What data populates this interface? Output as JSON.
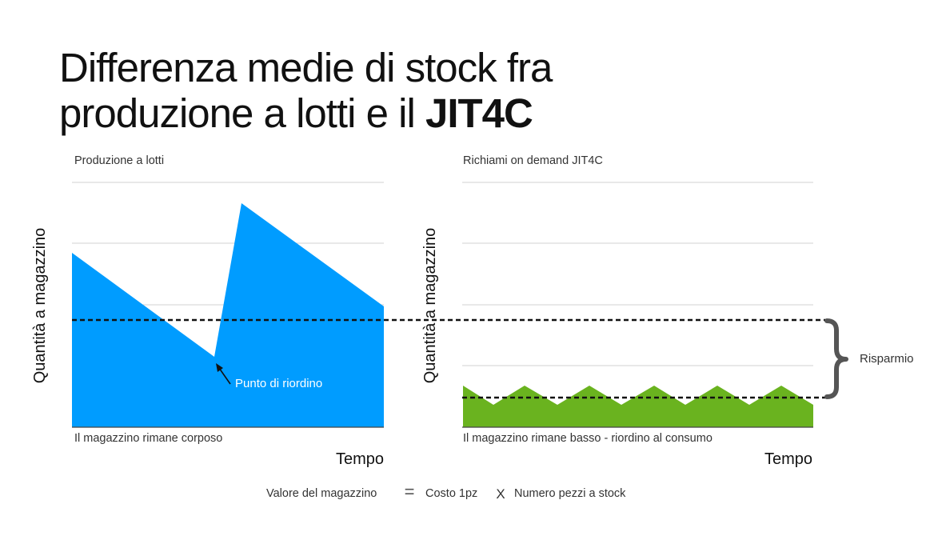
{
  "title": {
    "line1": "Differenza medie di stock fra",
    "line2_prefix": "produzione a lotti e il ",
    "line2_bold": "JIT4C"
  },
  "charts": [
    {
      "subtitle": "Produzione a lotti",
      "y_label": "Quantità a magazzino",
      "x_label": "Tempo",
      "caption": "Il magazzino rimane corposo",
      "annotation": "Punto di riordino",
      "fill_color": "#009cff"
    },
    {
      "subtitle": "Richiami on demand JIT4C",
      "y_label": "Quantità a magazzino",
      "x_label": "Tempo",
      "caption": "Il magazzino rimane basso - riordino al consumo",
      "fill_color": "#6ab31f"
    }
  ],
  "savings_label": "Risparmio",
  "formula": {
    "left": "Valore del magazzino",
    "equals": "=",
    "middle": "Costo 1pz",
    "times": "X",
    "right": "Numero pezzi a stock"
  },
  "colors": {
    "text": "#111111",
    "grid": "#d0d0d0",
    "bracket": "#555555"
  }
}
